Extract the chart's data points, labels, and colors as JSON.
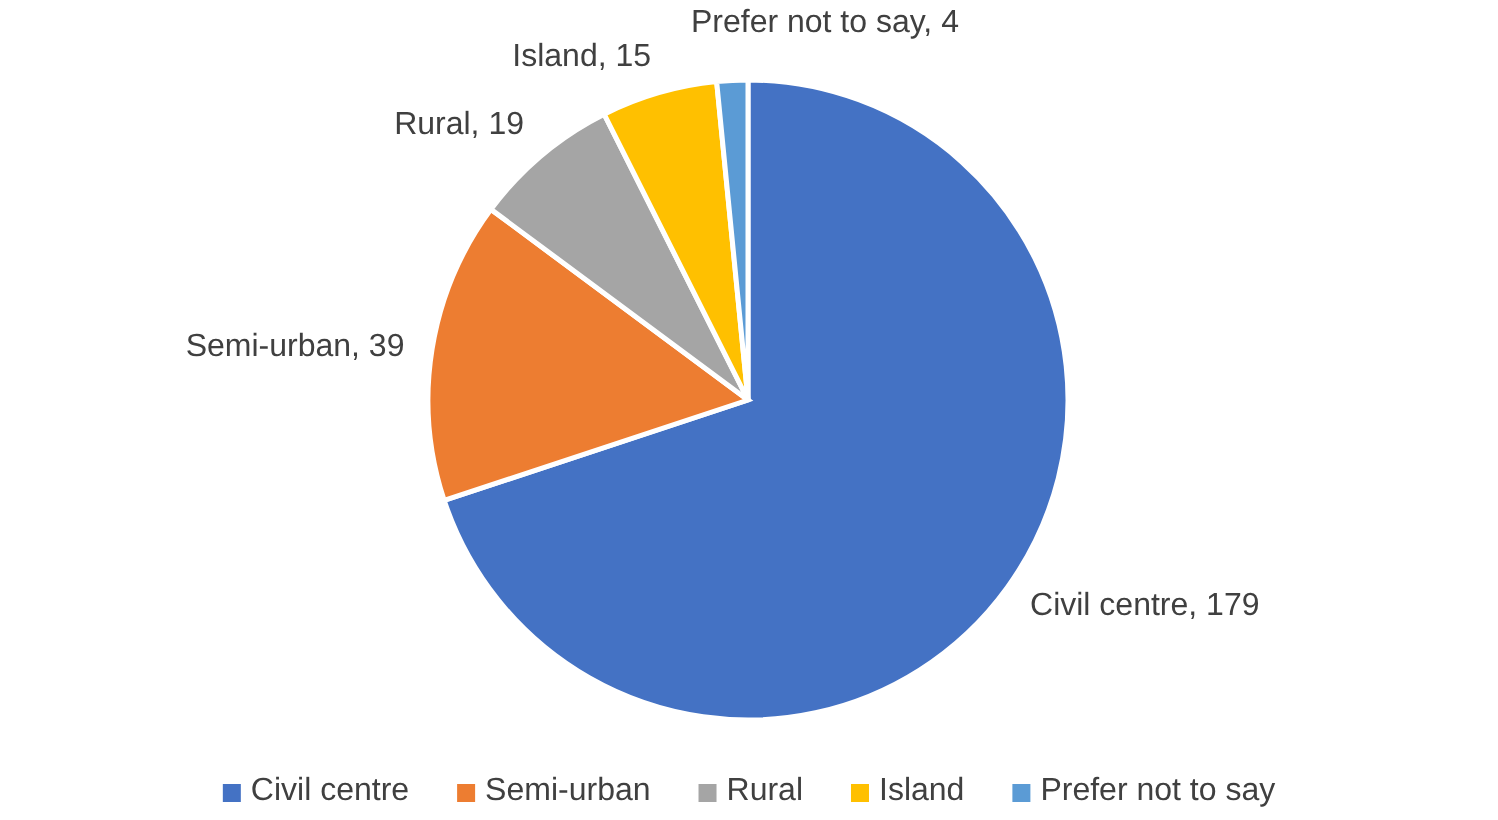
{
  "chart_data": {
    "type": "pie",
    "categories": [
      "Civil centre",
      "Semi-urban",
      "Rural",
      "Island",
      "Prefer not to say"
    ],
    "values": [
      179,
      39,
      19,
      15,
      4
    ],
    "value_labels": [
      "Civil centre, 179",
      "Semi-urban, 39",
      "Rural, 19",
      "Island, 15",
      "Prefer not to say, 4"
    ],
    "colors": [
      "#4472c4",
      "#ed7d31",
      "#a5a5a5",
      "#ffc000",
      "#5b9bd5"
    ],
    "legend": "bottom"
  }
}
